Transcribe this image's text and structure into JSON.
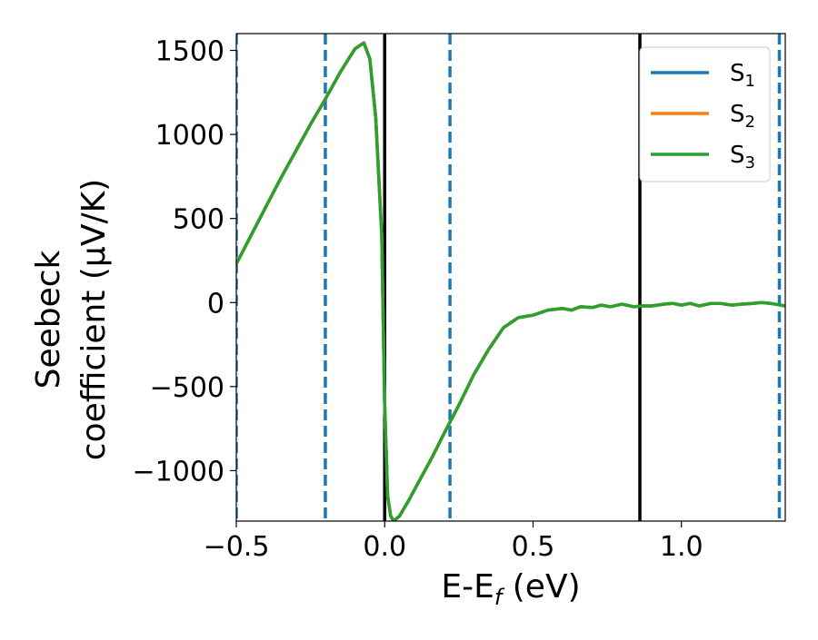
{
  "chart_data": {
    "type": "line",
    "xlabel_parts": [
      "E-E",
      "f",
      " (eV)"
    ],
    "ylabel_lines": [
      "Seebeck",
      "coefficient  (μV/K)"
    ],
    "xlim": [
      -0.5,
      1.35
    ],
    "ylim": [
      -1300,
      1600
    ],
    "xticks": [
      -0.5,
      0.0,
      0.5,
      1.0
    ],
    "xtick_labels": [
      "−0.5",
      "0.0",
      "0.5",
      "1.0"
    ],
    "yticks": [
      -1000,
      -500,
      0,
      500,
      1000,
      1500
    ],
    "ytick_labels": [
      "−1000",
      "−500",
      "0",
      "500",
      "1000",
      "1500"
    ],
    "grid": false,
    "legend_position": "top-right",
    "series": [
      {
        "name": "S",
        "sub": "1",
        "color": "#1f77b4"
      },
      {
        "name": "S",
        "sub": "2",
        "color": "#ff7f0e"
      },
      {
        "name": "S",
        "sub": "3",
        "color": "#2ca02c"
      }
    ],
    "x": [
      -0.5,
      -0.45,
      -0.4,
      -0.35,
      -0.3,
      -0.25,
      -0.2,
      -0.15,
      -0.1,
      -0.07,
      -0.05,
      -0.03,
      -0.01,
      0.0,
      0.01,
      0.02,
      0.03,
      0.05,
      0.08,
      0.12,
      0.16,
      0.2,
      0.25,
      0.3,
      0.35,
      0.4,
      0.45,
      0.5,
      0.55,
      0.6,
      0.63,
      0.66,
      0.7,
      0.73,
      0.76,
      0.8,
      0.84,
      0.87,
      0.9,
      0.94,
      0.97,
      1.0,
      1.03,
      1.06,
      1.1,
      1.13,
      1.17,
      1.2,
      1.24,
      1.27,
      1.3,
      1.35
    ],
    "y_values": [
      230,
      400,
      570,
      740,
      900,
      1060,
      1210,
      1370,
      1510,
      1545,
      1450,
      1100,
      400,
      -600,
      -1150,
      -1270,
      -1300,
      -1270,
      -1180,
      -1050,
      -920,
      -780,
      -610,
      -430,
      -280,
      -150,
      -90,
      -75,
      -45,
      -35,
      -45,
      -25,
      -30,
      -15,
      -25,
      -10,
      -25,
      -20,
      -20,
      -10,
      -5,
      -15,
      -5,
      -20,
      -5,
      -5,
      -15,
      -10,
      -5,
      0,
      -5,
      -20
    ],
    "vlines_dashed": [
      -0.5,
      -0.2,
      0.22,
      1.33
    ],
    "vlines_solid": [
      0.0,
      0.86
    ],
    "dashed_color": "#1f77b4",
    "solid_color": "#000000"
  }
}
